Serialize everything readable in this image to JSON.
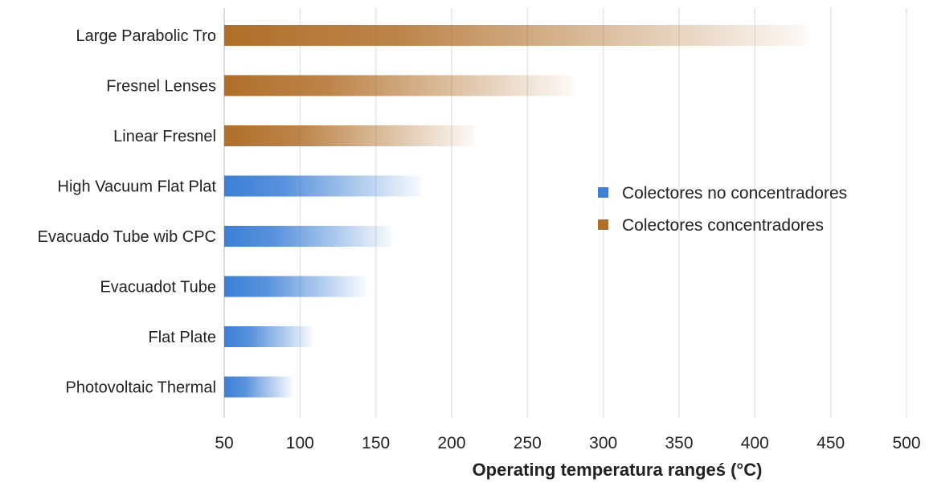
{
  "chart_data": {
    "type": "bar",
    "orientation": "horizontal",
    "xlabel": "Operating temperatura rangeś (°C)",
    "ylabel": "",
    "xlim": [
      50,
      500
    ],
    "x_ticks": [
      50,
      100,
      150,
      200,
      250,
      300,
      350,
      400,
      450,
      500
    ],
    "grid": true,
    "legend_position": "right-middle",
    "bars_fade_right": true,
    "series": [
      {
        "name": "Colectores no concentradores",
        "color": "#3b7fd6"
      },
      {
        "name": "Colectores concentradores",
        "color": "#b06f2a"
      }
    ],
    "categories": [
      {
        "label": "Large Parabolic Tro",
        "series": "Colectores concentradores",
        "start": 50,
        "end": 435
      },
      {
        "label": "Fresnel Lenses",
        "series": "Colectores concentradores",
        "start": 50,
        "end": 280
      },
      {
        "label": "Linear Fresnel",
        "series": "Colectores concentradores",
        "start": 50,
        "end": 215
      },
      {
        "label": "High Vacuum Flat Plat",
        "series": "Colectores no concentradores",
        "start": 50,
        "end": 180
      },
      {
        "label": "Evacuado Tube wib CPC",
        "series": "Colectores no concentradores",
        "start": 50,
        "end": 160
      },
      {
        "label": "Evacuadot Tube",
        "series": "Colectores no concentradores",
        "start": 50,
        "end": 143
      },
      {
        "label": "Flat Plate",
        "series": "Colectores no concentradores",
        "start": 50,
        "end": 108
      },
      {
        "label": "Photovoltaic Thermal",
        "series": "Colectores no concentradores",
        "start": 50,
        "end": 95
      }
    ]
  }
}
